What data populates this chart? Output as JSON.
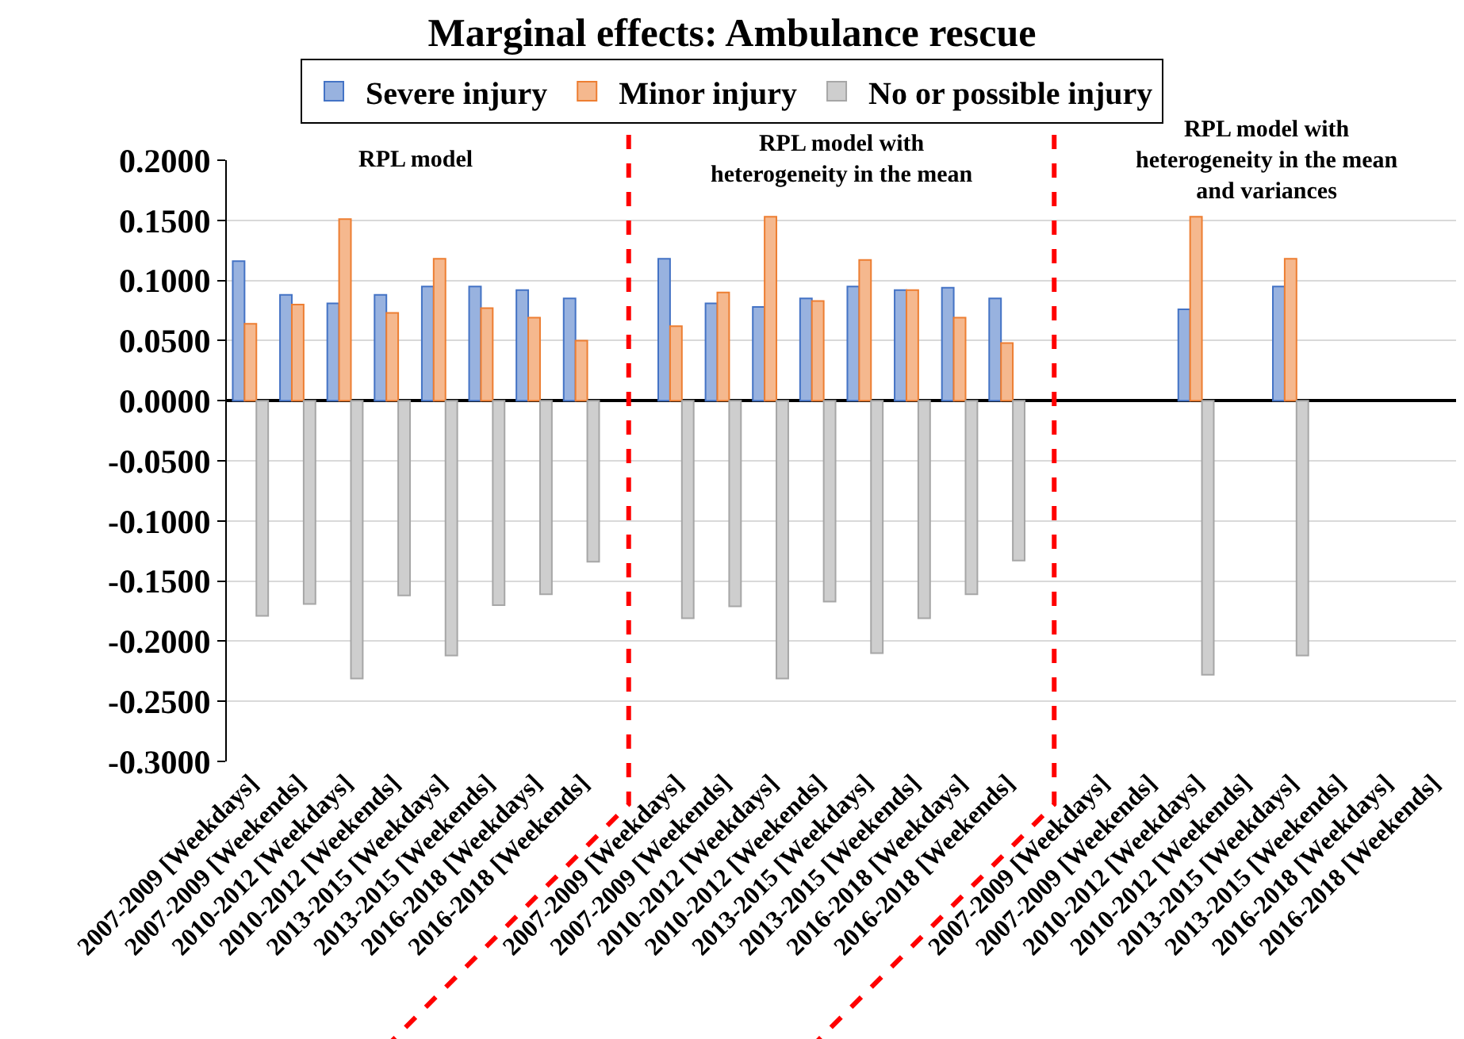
{
  "chart_data": {
    "type": "bar",
    "title": "Marginal effects: Ambulance rescue",
    "categories": [
      "2007-2009 [Weekdays]",
      "2007-2009 [Weekends]",
      "2010-2012 [Weekdays]",
      "2010-2012 [Weekends]",
      "2013-2015 [Weekdays]",
      "2013-2015 [Weekends]",
      "2016-2018 [Weekdays]",
      "2016-2018 [Weekends]",
      null,
      "2007-2009 [Weekdays]",
      "2007-2009 [Weekends]",
      "2010-2012 [Weekdays]",
      "2010-2012 [Weekends]",
      "2013-2015 [Weekdays]",
      "2013-2015 [Weekends]",
      "2016-2018 [Weekdays]",
      "2016-2018 [Weekends]",
      null,
      "2007-2009 [Weekdays]",
      "2007-2009 [Weekends]",
      "2010-2012 [Weekdays]",
      "2010-2012 [Weekends]",
      "2013-2015 [Weekdays]",
      "2013-2015 [Weekends]",
      "2016-2018 [Weekdays]",
      "2016-2018 [Weekends]"
    ],
    "series": [
      {
        "name": "Severe injury",
        "color": "#98b2df",
        "values": [
          0.116,
          0.088,
          0.081,
          0.088,
          0.095,
          0.095,
          0.092,
          0.085,
          null,
          0.118,
          0.081,
          0.078,
          0.085,
          0.095,
          0.092,
          0.094,
          0.085,
          null,
          null,
          null,
          0.076,
          null,
          0.095,
          null,
          null,
          null
        ]
      },
      {
        "name": "Minor injury",
        "color": "#f5b88e",
        "values": [
          0.064,
          0.08,
          0.151,
          0.073,
          0.118,
          0.077,
          0.069,
          0.05,
          null,
          0.062,
          0.09,
          0.153,
          0.083,
          0.117,
          0.092,
          0.069,
          0.048,
          null,
          null,
          null,
          0.153,
          null,
          0.118,
          null,
          null,
          null
        ]
      },
      {
        "name": "No or possible injury",
        "color": "#cecece",
        "values": [
          -0.179,
          -0.169,
          -0.231,
          -0.162,
          -0.212,
          -0.17,
          -0.161,
          -0.134,
          null,
          -0.181,
          -0.171,
          -0.231,
          -0.167,
          -0.21,
          -0.181,
          -0.161,
          -0.133,
          null,
          null,
          null,
          -0.228,
          null,
          -0.212,
          null,
          null,
          null
        ]
      }
    ],
    "ylim": [
      -0.3,
      0.2
    ],
    "yticks": [
      {
        "value": -0.3,
        "label": "-0.3000"
      },
      {
        "value": -0.25,
        "label": "-0.2500"
      },
      {
        "value": -0.2,
        "label": "-0.2000"
      },
      {
        "value": -0.15,
        "label": "-0.1500"
      },
      {
        "value": -0.1,
        "label": "-0.1000"
      },
      {
        "value": -0.05,
        "label": "-0.0500"
      },
      {
        "value": 0,
        "label": "0.0000"
      },
      {
        "value": 0.05,
        "label": "0.0500"
      },
      {
        "value": 0.1,
        "label": "0.1000"
      },
      {
        "value": 0.15,
        "label": "0.1500"
      },
      {
        "value": 0.2,
        "label": "0.2000"
      }
    ],
    "annotations": [
      "RPL model",
      "RPL model with\nheterogeneity in the mean",
      "RPL model with\nheterogeneity in the mean\nand variances"
    ],
    "grid": "y",
    "legend": "top"
  }
}
